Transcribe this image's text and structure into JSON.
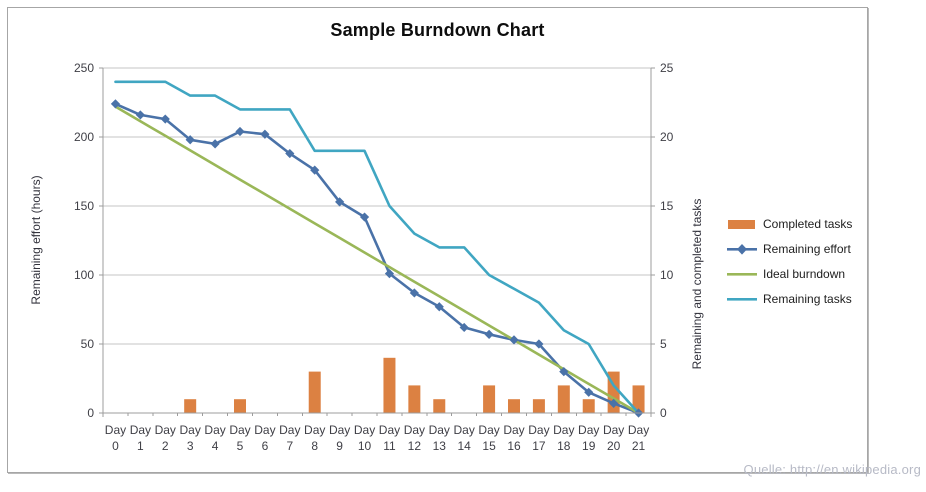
{
  "footer": {
    "source_note": "Quelle: http://en.wikipedia.org"
  },
  "chart_data": {
    "type": "bar",
    "subtype": "combo-bar-line",
    "title": "Sample Burndown Chart",
    "x_label_prefix": "Day",
    "categories": [
      "0",
      "1",
      "2",
      "3",
      "4",
      "5",
      "6",
      "7",
      "8",
      "9",
      "10",
      "11",
      "12",
      "13",
      "14",
      "15",
      "16",
      "17",
      "18",
      "19",
      "20",
      "21"
    ],
    "left_axis": {
      "label": "Remaining effort (hours)",
      "min": 0,
      "max": 250,
      "step": 50
    },
    "right_axis": {
      "label": "Remaining and completed tasks",
      "min": 0,
      "max": 25,
      "step": 5
    },
    "grid": true,
    "legend_position": "right",
    "series": [
      {
        "name": "Completed tasks",
        "type": "bar",
        "axis": "right",
        "color": "#dc8142",
        "values": [
          0,
          0,
          0,
          1,
          0,
          1,
          0,
          0,
          3,
          0,
          0,
          4,
          2,
          1,
          0,
          2,
          1,
          1,
          2,
          1,
          3,
          2
        ]
      },
      {
        "name": "Remaining effort",
        "type": "line",
        "axis": "left",
        "color": "#4a72a8",
        "marker": "diamond",
        "values": [
          224,
          216,
          213,
          198,
          195,
          204,
          202,
          188,
          176,
          153,
          142,
          101,
          87,
          77,
          62,
          57,
          53,
          50,
          30,
          15,
          7,
          0
        ]
      },
      {
        "name": "Ideal burndown",
        "type": "line",
        "axis": "left",
        "color": "#9ab758",
        "values": [
          222,
          211.4,
          200.9,
          190.3,
          179.7,
          169.1,
          158.6,
          148,
          137.4,
          126.9,
          116.3,
          105.7,
          95.1,
          84.6,
          74,
          63.4,
          52.9,
          42.3,
          31.7,
          21.1,
          10.6,
          0
        ]
      },
      {
        "name": "Remaining tasks",
        "type": "line",
        "axis": "right",
        "color": "#40a6c2",
        "values": [
          24,
          24,
          24,
          23,
          23,
          22,
          22,
          22,
          19,
          19,
          19,
          15,
          13,
          12,
          12,
          10,
          9,
          8,
          6,
          5,
          2,
          0
        ]
      }
    ],
    "colors": {
      "gridline": "#c6c6c6",
      "axis_line": "#9c9c9c",
      "tick_text": "#3f3f46"
    }
  }
}
